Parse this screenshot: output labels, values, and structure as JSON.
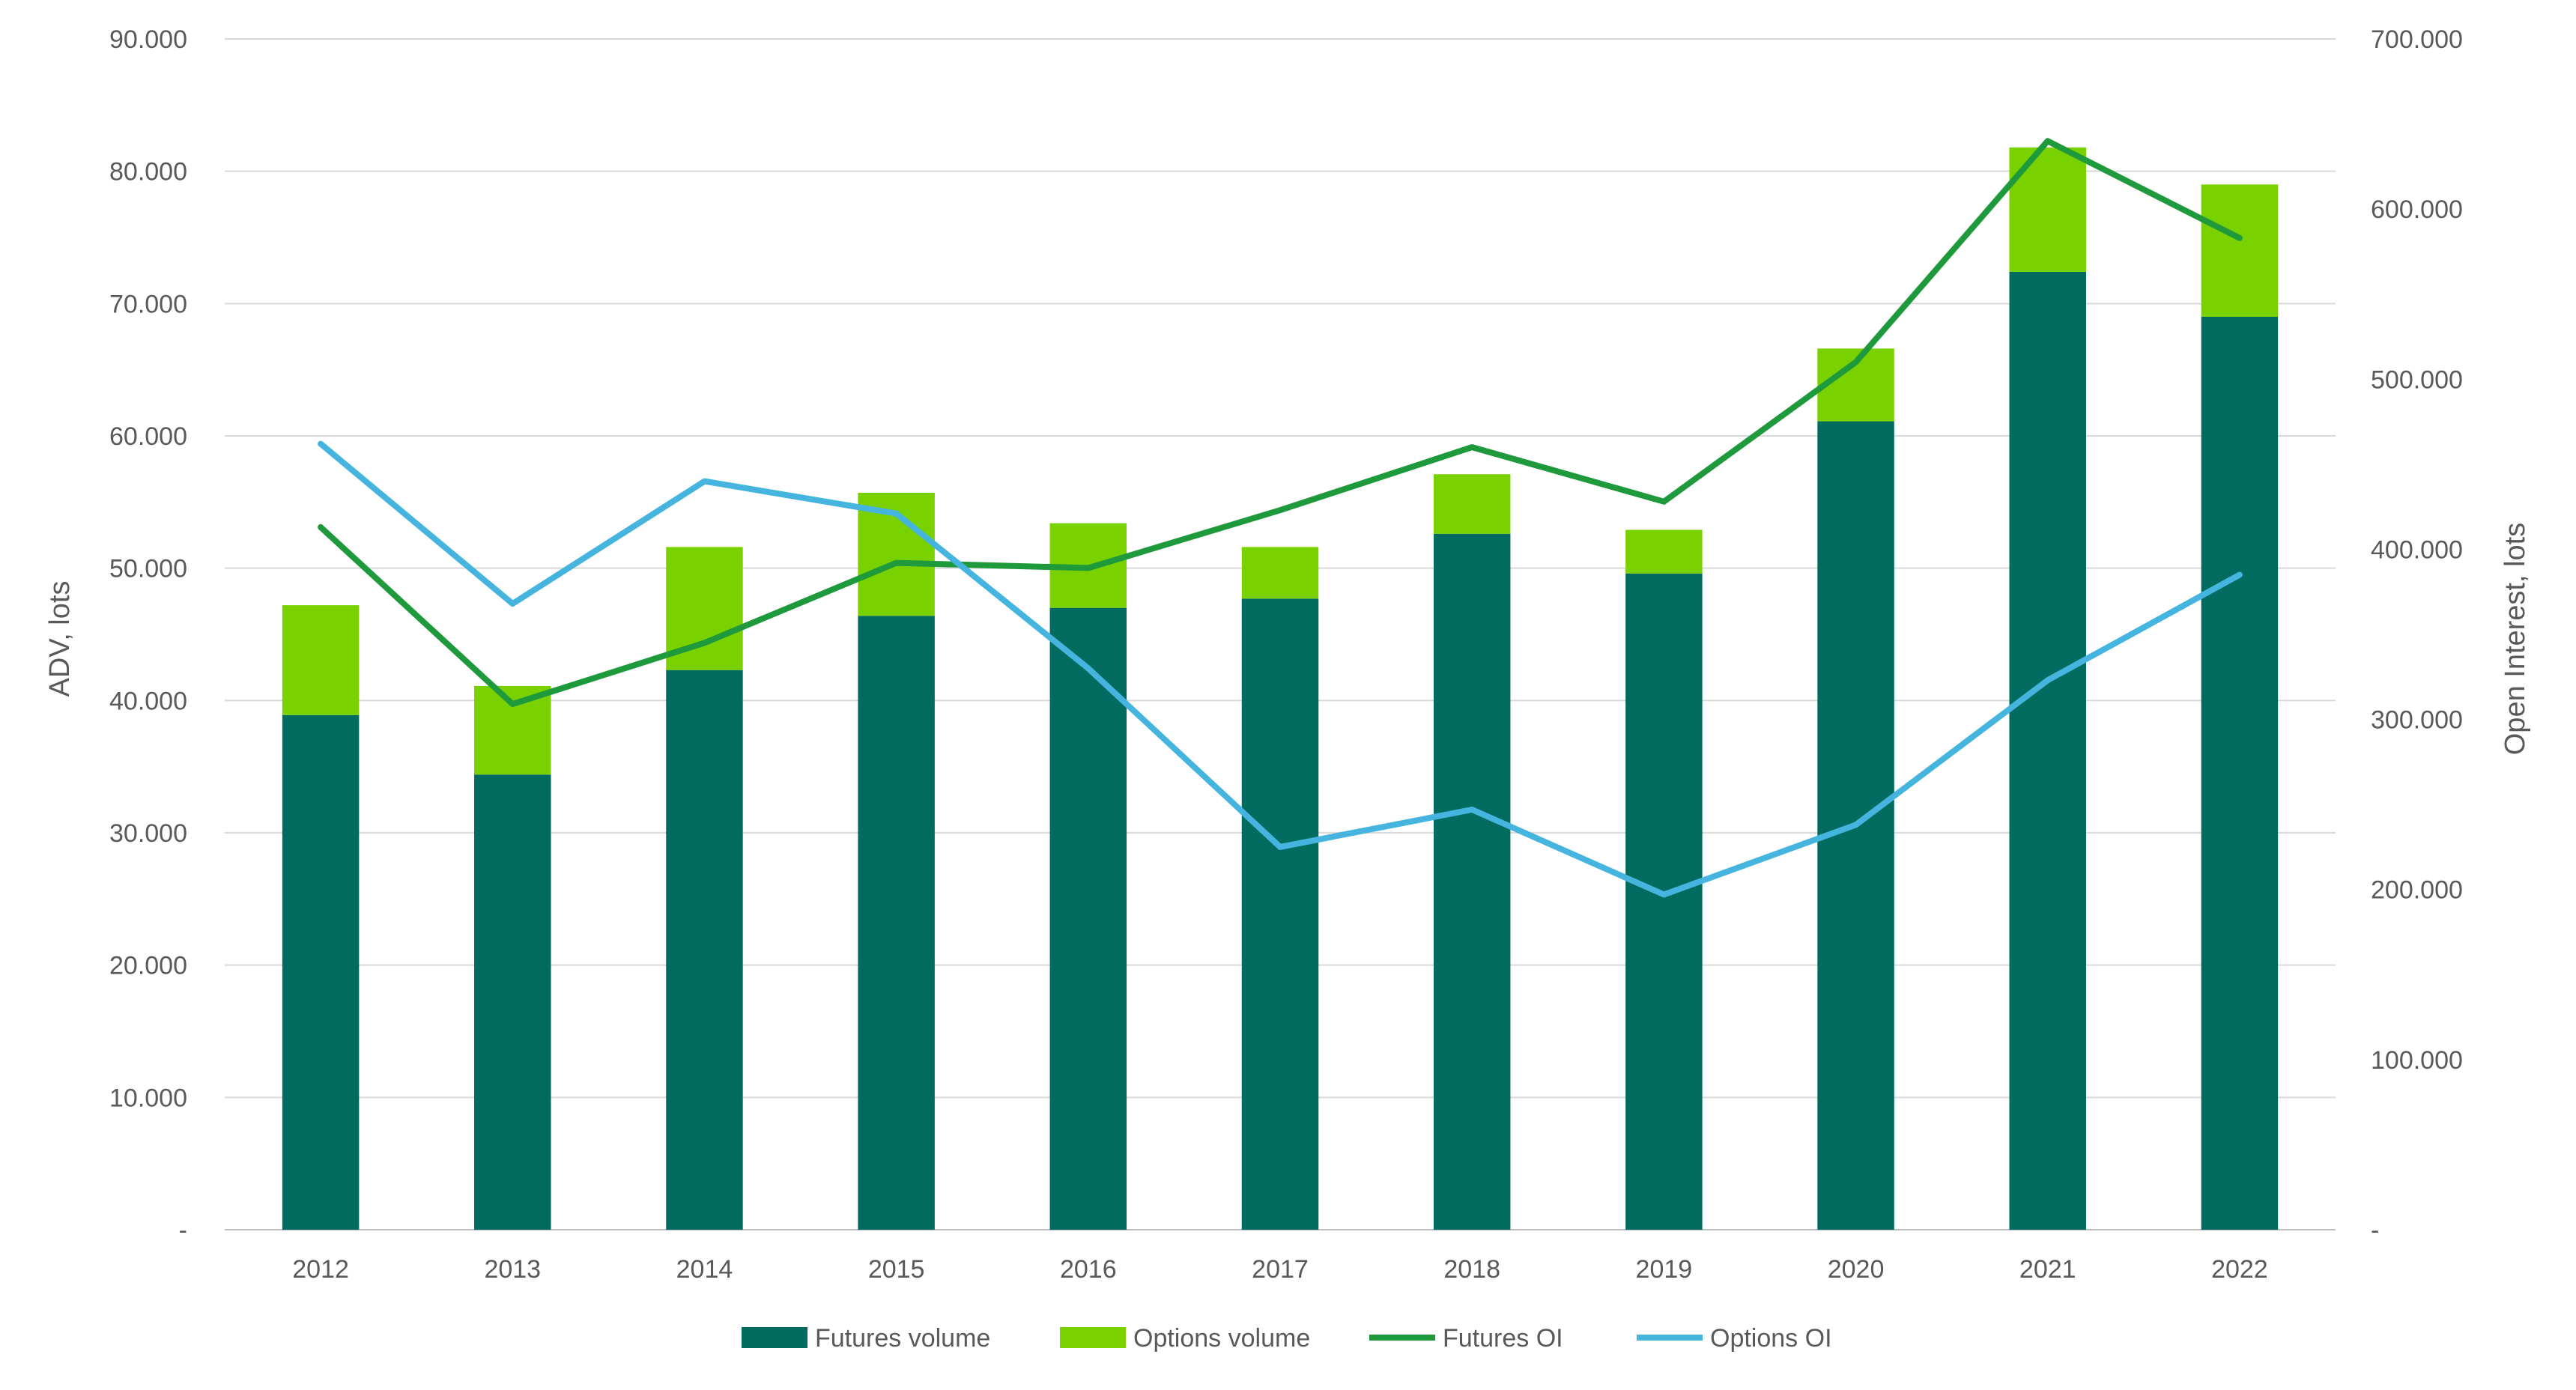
{
  "chart_data": {
    "type": "bar",
    "stacked": true,
    "categories": [
      "2012",
      "2013",
      "2014",
      "2015",
      "2016",
      "2017",
      "2018",
      "2019",
      "2020",
      "2021",
      "2022"
    ],
    "series": [
      {
        "name": "Futures volume",
        "kind": "bar",
        "axis": "left",
        "color": "#006B5E",
        "values": [
          38900,
          34400,
          42300,
          46400,
          47000,
          47700,
          52600,
          49600,
          61100,
          72400,
          69000
        ]
      },
      {
        "name": "Options volume",
        "kind": "bar",
        "axis": "left",
        "color": "#7AD100",
        "values": [
          8300,
          6700,
          9300,
          9300,
          6400,
          3900,
          4500,
          3300,
          5500,
          9400,
          10000
        ]
      },
      {
        "name": "Futures OI",
        "kind": "line",
        "axis": "right",
        "color": "#1E9A3C",
        "values": [
          413000,
          309000,
          345000,
          392000,
          389000,
          423000,
          460000,
          428000,
          510000,
          640000,
          583000
        ]
      },
      {
        "name": "Options OI",
        "kind": "line",
        "axis": "right",
        "color": "#45B5E0",
        "values": [
          462000,
          368000,
          440000,
          421000,
          330000,
          225000,
          247000,
          197000,
          238000,
          323000,
          385000
        ]
      }
    ],
    "ylabel": "ADV, lots",
    "y2label": "Open Interest, lots",
    "ylim": [
      0,
      90000
    ],
    "y2lim": [
      0,
      700000
    ],
    "yticks": [
      "-",
      "10.000",
      "20.000",
      "30.000",
      "40.000",
      "50.000",
      "60.000",
      "70.000",
      "80.000",
      "90.000"
    ],
    "y2ticks": [
      "-",
      "100.000",
      "200.000",
      "300.000",
      "400.000",
      "500.000",
      "600.000",
      "700.000"
    ],
    "grid": true,
    "legend_position": "bottom"
  }
}
